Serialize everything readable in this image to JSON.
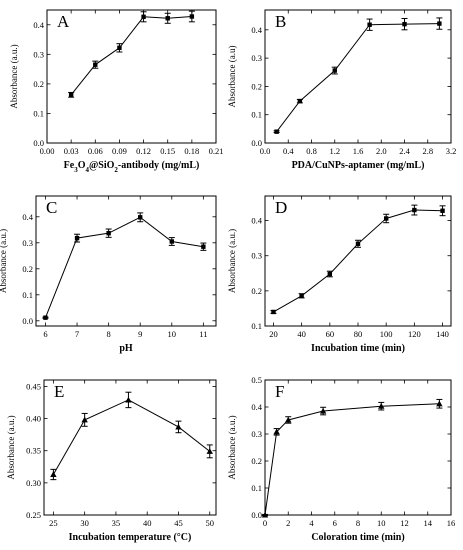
{
  "chart_data": [
    {
      "type": "line",
      "panel_label": "A",
      "xlabel": "Fe3O4@SiO2-antibody (mg/mL)",
      "xlabel_parts": [
        {
          "t": "Fe"
        },
        {
          "t": "3",
          "sub": true
        },
        {
          "t": "O"
        },
        {
          "t": "4",
          "sub": true
        },
        {
          "t": "@SiO"
        },
        {
          "t": "2",
          "sub": true
        },
        {
          "t": "-antibody (mg/mL)"
        }
      ],
      "ylabel": "Absorbance (a.u.)",
      "xlim": [
        0.0,
        0.21
      ],
      "ylim": [
        0.0,
        0.45
      ],
      "xticks": [
        0.0,
        0.03,
        0.06,
        0.09,
        0.12,
        0.15,
        0.18,
        0.21
      ],
      "xtick_labels": [
        "0.00",
        "0.03",
        "0.06",
        "0.09",
        "0.12",
        "0.15",
        "0.18",
        "0.21"
      ],
      "yticks": [
        0.0,
        0.1,
        0.2,
        0.3,
        0.4
      ],
      "ytick_labels": [
        "0.0",
        "0.1",
        "0.2",
        "0.3",
        "0.4"
      ],
      "x": [
        0.03,
        0.06,
        0.09,
        0.12,
        0.15,
        0.18
      ],
      "y": [
        0.163,
        0.265,
        0.322,
        0.427,
        0.422,
        0.428
      ],
      "err": [
        0.008,
        0.012,
        0.014,
        0.017,
        0.017,
        0.018
      ],
      "marker": "square"
    },
    {
      "type": "line",
      "panel_label": "B",
      "xlabel": "PDA/CuNPs-aptamer (mg/mL)",
      "ylabel": "Absorbance (a.u)",
      "xlim": [
        0.0,
        3.2
      ],
      "ylim": [
        0.0,
        0.47
      ],
      "xticks": [
        0.0,
        0.4,
        0.8,
        1.2,
        1.6,
        2.0,
        2.4,
        2.8,
        3.2
      ],
      "xtick_labels": [
        "0.0",
        "0.4",
        "0.8",
        "1.2",
        "1.6",
        "2.0",
        "2.4",
        "2.8",
        "3.2"
      ],
      "yticks": [
        0.0,
        0.1,
        0.2,
        0.3,
        0.4
      ],
      "ytick_labels": [
        "0.0",
        "0.1",
        "0.2",
        "0.3",
        "0.4"
      ],
      "x": [
        0.2,
        0.6,
        1.2,
        1.8,
        2.4,
        3.0
      ],
      "y": [
        0.04,
        0.148,
        0.256,
        0.418,
        0.42,
        0.422
      ],
      "err": [
        0.003,
        0.006,
        0.012,
        0.02,
        0.02,
        0.02
      ],
      "marker": "square"
    },
    {
      "type": "line",
      "panel_label": "C",
      "xlabel": "pH",
      "ylabel": "Absorbance (a.u.)",
      "xlim": [
        5.7,
        11.4
      ],
      "ylim": [
        -0.02,
        0.48
      ],
      "xticks": [
        6,
        7,
        8,
        9,
        10,
        11
      ],
      "xtick_labels": [
        "6",
        "7",
        "8",
        "9",
        "10",
        "11"
      ],
      "yticks": [
        0.0,
        0.1,
        0.2,
        0.3,
        0.4
      ],
      "ytick_labels": [
        "0.0",
        "0.1",
        "0.2",
        "0.3",
        "0.4"
      ],
      "x": [
        6,
        7,
        8,
        9,
        10,
        11
      ],
      "y": [
        0.012,
        0.318,
        0.337,
        0.398,
        0.305,
        0.285
      ],
      "err": [
        0.002,
        0.015,
        0.016,
        0.017,
        0.015,
        0.014
      ],
      "marker": "square"
    },
    {
      "type": "line",
      "panel_label": "D",
      "xlabel": "Incubation time (min)",
      "ylabel": "Absorbance (a.u.)",
      "xlim": [
        14,
        146
      ],
      "ylim": [
        0.1,
        0.47
      ],
      "xticks": [
        20,
        40,
        60,
        80,
        100,
        120,
        140
      ],
      "xtick_labels": [
        "20",
        "40",
        "60",
        "80",
        "100",
        "120",
        "140"
      ],
      "yticks": [
        0.1,
        0.2,
        0.3,
        0.4
      ],
      "ytick_labels": [
        "0.1",
        "0.2",
        "0.3",
        "0.4"
      ],
      "x": [
        20,
        40,
        60,
        80,
        100,
        120,
        140
      ],
      "y": [
        0.14,
        0.186,
        0.248,
        0.334,
        0.406,
        0.43,
        0.428
      ],
      "err": [
        0.004,
        0.006,
        0.008,
        0.01,
        0.012,
        0.014,
        0.014
      ],
      "marker": "square"
    },
    {
      "type": "line",
      "panel_label": "E",
      "xlabel": "Incubation temperature (°C)",
      "ylabel": "Absorbance (a.u.)",
      "xlim": [
        23.5,
        51
      ],
      "ylim": [
        0.25,
        0.46
      ],
      "xticks": [
        25,
        30,
        35,
        40,
        45,
        50
      ],
      "xtick_labels": [
        "25",
        "30",
        "35",
        "40",
        "45",
        "50"
      ],
      "yticks": [
        0.25,
        0.3,
        0.35,
        0.4,
        0.45
      ],
      "ytick_labels": [
        "0.25",
        "0.30",
        "0.35",
        "0.40",
        "0.45"
      ],
      "x": [
        25,
        30,
        37,
        45,
        50
      ],
      "y": [
        0.313,
        0.398,
        0.429,
        0.387,
        0.349
      ],
      "err": [
        0.008,
        0.01,
        0.012,
        0.009,
        0.01
      ],
      "marker": "triangle"
    },
    {
      "type": "line",
      "panel_label": "F",
      "xlabel": "Coloration time (min)",
      "ylabel": "Absorbance (a.u.)",
      "xlim": [
        0,
        16
      ],
      "ylim": [
        0.0,
        0.5
      ],
      "xticks": [
        0,
        2,
        4,
        6,
        8,
        10,
        12,
        14,
        16
      ],
      "xtick_labels": [
        "0",
        "2",
        "4",
        "6",
        "8",
        "10",
        "12",
        "14",
        "16"
      ],
      "yticks": [
        0.0,
        0.1,
        0.2,
        0.3,
        0.4,
        0.5
      ],
      "ytick_labels": [
        "0.0",
        "0.1",
        "0.2",
        "0.3",
        "0.4",
        "0.5"
      ],
      "x": [
        0,
        1,
        2,
        5,
        10,
        15
      ],
      "y": [
        0.0,
        0.308,
        0.352,
        0.385,
        0.403,
        0.412
      ],
      "err": [
        0.002,
        0.012,
        0.012,
        0.014,
        0.014,
        0.016
      ],
      "marker": "triangle"
    }
  ]
}
